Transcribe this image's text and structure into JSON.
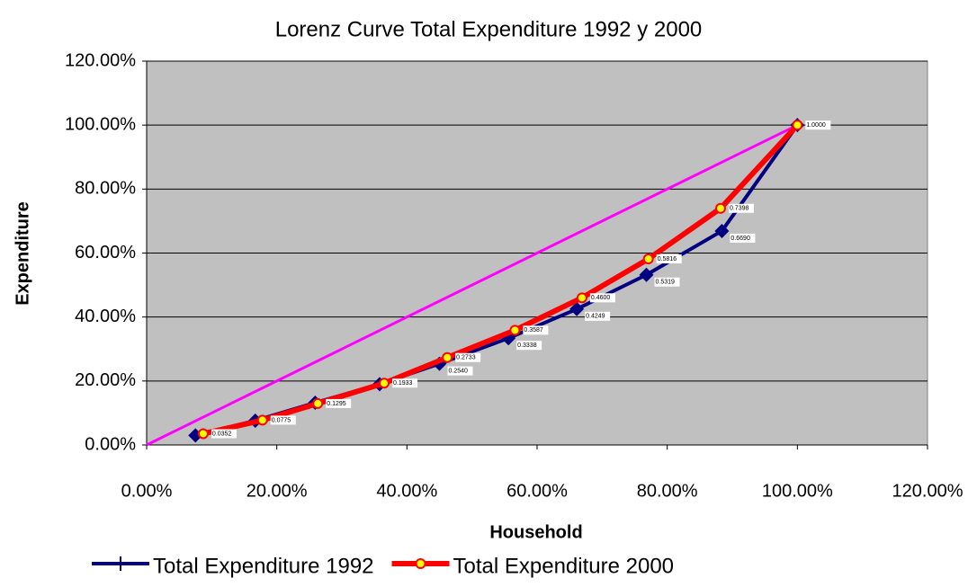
{
  "chart_data": {
    "type": "line",
    "title": "Lorenz Curve Total Expenditure 1992 y 2000",
    "x_label": "Household",
    "y_label": "Expenditure",
    "xlim": [
      0,
      120
    ],
    "ylim": [
      0,
      120
    ],
    "xticks": [
      {
        "value": 0,
        "label": "0.00%"
      },
      {
        "value": 20,
        "label": "20.00%"
      },
      {
        "value": 40,
        "label": "40.00%"
      },
      {
        "value": 60,
        "label": "60.00%"
      },
      {
        "value": 80,
        "label": "80.00%"
      },
      {
        "value": 100,
        "label": "100.00%"
      },
      {
        "value": 120,
        "label": "120.00%"
      }
    ],
    "yticks": [
      {
        "value": 0,
        "label": "0.00%"
      },
      {
        "value": 20,
        "label": "20.00%"
      },
      {
        "value": 40,
        "label": "40.00%"
      },
      {
        "value": 60,
        "label": "60.00%"
      },
      {
        "value": 80,
        "label": "80.00%"
      },
      {
        "value": 100,
        "label": "100.00%"
      },
      {
        "value": 120,
        "label": "120.00%"
      }
    ],
    "grid": true,
    "background": "#c0c0c0",
    "legend": "bottom",
    "series": [
      {
        "color": "#ff00ff",
        "x": [
          0,
          100
        ],
        "values": [
          0,
          100
        ]
      },
      {
        "name": "Total Expenditure 1992",
        "color": "#000080",
        "marker": "diamond",
        "x": [
          7.5,
          16.7,
          25.9,
          35.8,
          45,
          55.6,
          66.1,
          76.8,
          88.4,
          100
        ],
        "values": [
          3.0,
          7.6,
          13.2,
          19.0,
          25.4,
          33.38,
          42.49,
          53.19,
          66.9,
          100
        ],
        "value_labels": [
          null,
          null,
          null,
          null,
          "0.2540",
          "0.3338",
          "0.4249",
          "0.5319",
          "0.6690",
          null
        ]
      },
      {
        "name": "Total Expenditure 2000",
        "color": "#ff0000",
        "marker": "circle",
        "x": [
          8.7,
          17.8,
          26.3,
          36.5,
          46.2,
          56.6,
          66.9,
          77.1,
          88.2,
          100
        ],
        "values": [
          3.52,
          7.75,
          12.95,
          19.33,
          27.33,
          35.87,
          46.0,
          58.16,
          73.98,
          100
        ],
        "value_labels": [
          "0.0352",
          "0.0775",
          "0.1295",
          "0.1933",
          "0.2733",
          "0.3587",
          "0.4600",
          "0.5816",
          "0.7398",
          "1.0000"
        ]
      }
    ]
  }
}
